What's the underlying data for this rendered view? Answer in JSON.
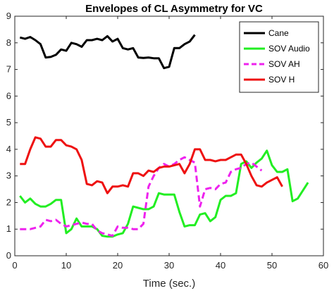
{
  "chart_data": {
    "type": "line",
    "title": "Envelopes of CL Asymmetry for VC",
    "xlabel": "Time (sec.)",
    "ylabel": "",
    "xlim": [
      0,
      60
    ],
    "ylim": [
      0,
      9
    ],
    "xticks": [
      0,
      10,
      20,
      30,
      40,
      50,
      60
    ],
    "yticks": [
      0,
      1,
      2,
      3,
      4,
      5,
      6,
      7,
      8,
      9
    ],
    "grid": false,
    "legend_position": "top-right",
    "series": [
      {
        "name": "Cane",
        "color": "#000000",
        "dash": "solid",
        "x": [
          1,
          2,
          3,
          4,
          5,
          6,
          7,
          8,
          9,
          10,
          11,
          12,
          13,
          14,
          15,
          16,
          17,
          18,
          19,
          20,
          21,
          22,
          23,
          24,
          25,
          26,
          27,
          28,
          29,
          30,
          31,
          32,
          33,
          34,
          35
        ],
        "y": [
          8.2,
          8.15,
          8.22,
          8.1,
          7.95,
          7.45,
          7.47,
          7.55,
          7.75,
          7.7,
          8.0,
          7.95,
          7.85,
          8.1,
          8.1,
          8.15,
          8.1,
          8.25,
          8.05,
          8.15,
          7.8,
          7.75,
          7.8,
          7.45,
          7.43,
          7.45,
          7.42,
          7.42,
          7.05,
          7.1,
          7.8,
          7.8,
          7.95,
          8.05,
          8.3
        ]
      },
      {
        "name": "SOV Audio",
        "color": "#22ee22",
        "dash": "solid",
        "x": [
          1,
          2,
          3,
          4,
          5,
          6,
          7,
          8,
          9,
          10,
          11,
          12,
          13,
          14,
          15,
          16,
          17,
          18,
          19,
          20,
          21,
          22,
          23,
          24,
          25,
          26,
          27,
          28,
          29,
          30,
          31,
          32,
          33,
          34,
          35,
          36,
          37,
          38,
          39,
          40,
          41,
          42,
          43,
          44,
          45,
          46,
          47,
          48,
          49,
          50,
          51,
          52,
          53,
          54,
          55,
          56,
          57
        ],
        "y": [
          2.25,
          2.0,
          2.15,
          1.95,
          1.85,
          1.85,
          1.95,
          2.1,
          2.1,
          0.85,
          1.0,
          1.4,
          1.1,
          1.1,
          1.1,
          1.0,
          0.75,
          0.72,
          0.72,
          0.8,
          0.85,
          1.2,
          1.85,
          1.8,
          1.75,
          1.75,
          1.85,
          2.35,
          2.3,
          2.3,
          2.3,
          1.65,
          1.1,
          1.15,
          1.15,
          1.55,
          1.6,
          1.3,
          1.45,
          2.1,
          2.25,
          2.25,
          2.35,
          3.45,
          3.55,
          3.3,
          3.5,
          3.65,
          3.95,
          3.4,
          3.15,
          3.15,
          3.25,
          2.05,
          2.15,
          2.45,
          2.75
        ]
      },
      {
        "name": "SOV AH",
        "color": "#ee22ee",
        "dash": "dashed",
        "x": [
          1,
          2,
          3,
          4,
          5,
          6,
          7,
          8,
          9,
          10,
          11,
          12,
          13,
          14,
          15,
          16,
          17,
          18,
          19,
          20,
          21,
          22,
          23,
          24,
          25,
          26,
          27,
          28,
          29,
          30,
          31,
          32,
          33,
          34,
          35,
          36,
          37,
          38,
          39,
          40,
          41,
          42,
          43,
          44,
          45,
          46,
          47,
          48
        ],
        "y": [
          1.0,
          1.0,
          1.0,
          1.05,
          1.1,
          1.35,
          1.3,
          1.35,
          1.2,
          1.1,
          1.15,
          1.2,
          1.25,
          1.2,
          1.2,
          0.95,
          0.85,
          0.8,
          0.75,
          1.1,
          1.05,
          1.05,
          1.0,
          1.0,
          1.2,
          2.6,
          3.0,
          3.3,
          3.45,
          3.35,
          3.45,
          3.6,
          3.7,
          3.6,
          3.5,
          1.85,
          2.5,
          2.55,
          2.5,
          2.7,
          2.75,
          3.15,
          3.25,
          3.3,
          3.45,
          3.5,
          3.35,
          3.2
        ]
      },
      {
        "name": "SOV H",
        "color": "#ee1111",
        "dash": "solid",
        "x": [
          1,
          2,
          3,
          4,
          5,
          6,
          7,
          8,
          9,
          10,
          11,
          12,
          13,
          14,
          15,
          16,
          17,
          18,
          19,
          20,
          21,
          22,
          23,
          24,
          25,
          26,
          27,
          28,
          29,
          30,
          31,
          32,
          33,
          34,
          35,
          36,
          37,
          38,
          39,
          40,
          41,
          42,
          43,
          44,
          45,
          46,
          47,
          48,
          49,
          50,
          51,
          52
        ],
        "y": [
          3.45,
          3.45,
          4.0,
          4.45,
          4.4,
          4.1,
          4.1,
          4.35,
          4.35,
          4.15,
          4.1,
          4.0,
          3.6,
          2.7,
          2.65,
          2.8,
          2.75,
          2.35,
          2.6,
          2.6,
          2.65,
          2.6,
          3.1,
          3.1,
          3.0,
          3.2,
          3.15,
          3.3,
          3.35,
          3.35,
          3.4,
          3.45,
          3.1,
          3.45,
          4.0,
          4.0,
          3.6,
          3.6,
          3.55,
          3.6,
          3.6,
          3.7,
          3.8,
          3.8,
          3.45,
          3.0,
          2.65,
          2.6,
          2.75,
          2.85,
          2.95,
          2.6
        ]
      }
    ]
  }
}
